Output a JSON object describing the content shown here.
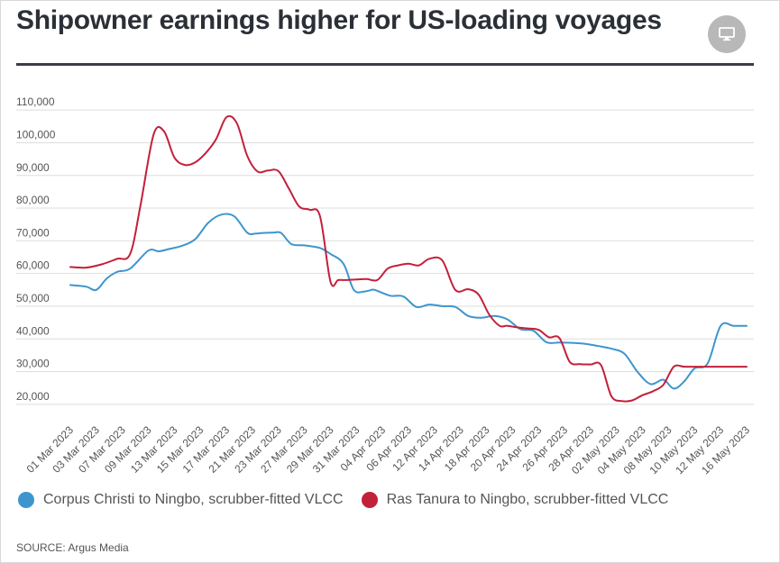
{
  "header": {
    "title": "Shipowner earnings higher for US-loading voyages",
    "device_icon": "monitor-icon"
  },
  "footer": {
    "source": "SOURCE: Argus Media"
  },
  "colors": {
    "corpus": "#3e95cd",
    "tanura": "#c3203a",
    "grid": "#dedede"
  },
  "chart_data": {
    "type": "line",
    "title": "Shipowner earnings higher for US-loading voyages",
    "xlabel": "",
    "ylabel": "",
    "ylim": [
      15000,
      115000
    ],
    "yticks": [
      20000,
      30000,
      40000,
      50000,
      60000,
      70000,
      80000,
      90000,
      100000,
      110000
    ],
    "ytick_labels": [
      "20,000",
      "30,000",
      "40,000",
      "50,000",
      "60,000",
      "70,000",
      "80,000",
      "90,000",
      "100,000",
      "110,000"
    ],
    "grid": true,
    "legend": "bottom",
    "x_tick_labels": [
      "01 Mar 2023",
      "03 Mar 2023",
      "07 Mar 2023",
      "09 Mar 2023",
      "13 Mar 2023",
      "15 Mar 2023",
      "17 Mar 2023",
      "21 Mar 2023",
      "23 Mar 2023",
      "27 Mar 2023",
      "29 Mar 2023",
      "31 Mar 2023",
      "04 Apr 2023",
      "06 Apr 2023",
      "12 Apr 2023",
      "14 Apr 2023",
      "18 Apr 2023",
      "20 Apr 2023",
      "24 Apr 2023",
      "26 Apr 2023",
      "28 Apr 2023",
      "02 May 2023",
      "04 May 2023",
      "08 May 2023",
      "10 May 2023",
      "12 May 2023",
      "16 May 2023"
    ],
    "x_range": [
      0,
      26
    ],
    "series": [
      {
        "name": "Corpus Christi to Ningbo, scrubber-fitted VLCC",
        "color": "#3e95cd",
        "x": [
          0,
          0.6,
          1.0,
          1.4,
          1.8,
          2.3,
          3.0,
          3.4,
          3.8,
          4.3,
          4.8,
          5.3,
          5.8,
          6.3,
          6.8,
          7.1,
          7.4,
          7.8,
          8.1,
          8.5,
          9.0,
          9.6,
          10.0,
          10.5,
          10.9,
          11.3,
          11.5,
          11.7,
          12.3,
          12.8,
          13.3,
          13.8,
          14.3,
          14.8,
          15.3,
          15.8,
          16.3,
          16.8,
          17.3,
          17.8,
          18.3,
          18.8,
          19.3,
          19.8,
          20.3,
          20.8,
          21.3,
          21.8,
          22.3,
          22.8,
          23.2,
          23.6,
          24.0,
          24.5,
          25.0,
          25.5,
          26.0
        ],
        "values": [
          56500,
          56000,
          55000,
          58500,
          60500,
          61500,
          67000,
          66800,
          67500,
          68500,
          70500,
          75500,
          78000,
          77500,
          72500,
          72200,
          72400,
          72500,
          72400,
          69000,
          68600,
          67800,
          66000,
          63000,
          55000,
          54500,
          54800,
          55000,
          53200,
          53000,
          49800,
          50500,
          50000,
          49800,
          47000,
          46500,
          47000,
          46000,
          43000,
          42500,
          39000,
          38900,
          38800,
          38500,
          37800,
          37000,
          35500,
          30000,
          26200,
          27500,
          24800,
          27000,
          31000,
          32500,
          44000,
          44000,
          44000
        ]
      },
      {
        "name": "Ras Tanura to Ningbo, scrubber-fitted VLCC",
        "color": "#c3203a",
        "x": [
          0,
          0.6,
          1.2,
          1.8,
          2.3,
          2.7,
          3.2,
          3.6,
          4.0,
          4.4,
          4.8,
          5.2,
          5.6,
          6.0,
          6.4,
          6.8,
          7.2,
          7.6,
          8.0,
          8.4,
          8.8,
          9.2,
          9.6,
          10.0,
          10.3,
          10.6,
          11.0,
          11.4,
          11.8,
          12.2,
          12.6,
          13.0,
          13.4,
          13.8,
          14.3,
          14.8,
          15.3,
          15.7,
          16.1,
          16.5,
          16.8,
          17.2,
          17.6,
          18.0,
          18.4,
          18.8,
          19.2,
          19.6,
          20.0,
          20.4,
          20.8,
          21.2,
          21.6,
          22.0,
          22.4,
          22.8,
          23.2,
          23.6,
          24.0,
          24.4,
          24.8,
          25.2,
          26.0
        ],
        "values": [
          62000,
          61800,
          62800,
          64500,
          66000,
          81000,
          102500,
          103500,
          95500,
          93200,
          94000,
          96800,
          101000,
          107800,
          106000,
          96000,
          91200,
          91500,
          91300,
          86000,
          80500,
          79500,
          77500,
          57500,
          58000,
          58000,
          58200,
          58300,
          58000,
          61500,
          62500,
          63000,
          62500,
          64500,
          64000,
          55000,
          55200,
          53500,
          47500,
          44000,
          44000,
          43500,
          43200,
          42800,
          40500,
          40300,
          33000,
          32300,
          32200,
          32000,
          22500,
          21000,
          21200,
          22800,
          24000,
          26000,
          31500,
          31500,
          31500,
          31500,
          31500,
          31500,
          31500
        ]
      }
    ]
  }
}
